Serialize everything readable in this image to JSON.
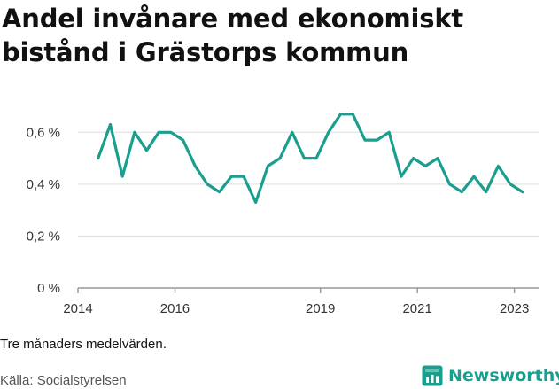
{
  "title": "Andel invånare med ekonomiskt bistånd i Grästorps kommun",
  "note": "Tre månaders medelvärden.",
  "source": "Källa: Socialstyrelsen",
  "brand": {
    "name": "Newsworthy",
    "icon": "newsworthy-logo-icon",
    "color": "#1a9e8e"
  },
  "chart_data": {
    "type": "line",
    "title": "Andel invånare med ekonomiskt bistånd i Grästorps kommun",
    "xlabel": "",
    "ylabel": "",
    "x_ticks": [
      "2014",
      "2016",
      "2019",
      "2021",
      "2023"
    ],
    "y_ticks": [
      "0 %",
      "0,2 %",
      "0,4 %",
      "0,6 %"
    ],
    "ylim": [
      0,
      0.7
    ],
    "grid": "horizontal",
    "line_color": "#1a9e8e",
    "series": [
      {
        "x": [
          "2014-06",
          "2014-09",
          "2014-12",
          "2015-03",
          "2015-06",
          "2015-09",
          "2015-12",
          "2016-03",
          "2016-06",
          "2016-09",
          "2016-12",
          "2017-03",
          "2017-06",
          "2017-09",
          "2017-12",
          "2018-03",
          "2018-06",
          "2018-09",
          "2018-12",
          "2019-03",
          "2019-06",
          "2019-09",
          "2019-12",
          "2020-03",
          "2020-06",
          "2020-09",
          "2020-12",
          "2021-03",
          "2021-06",
          "2021-09",
          "2021-12",
          "2022-03",
          "2022-06",
          "2022-09",
          "2022-12",
          "2023-03"
        ],
        "values": [
          0.5,
          0.63,
          0.43,
          0.6,
          0.53,
          0.6,
          0.6,
          0.57,
          0.47,
          0.4,
          0.37,
          0.43,
          0.43,
          0.33,
          0.47,
          0.5,
          0.6,
          0.5,
          0.5,
          0.6,
          0.67,
          0.67,
          0.57,
          0.57,
          0.6,
          0.43,
          0.5,
          0.47,
          0.5,
          0.4,
          0.37,
          0.43,
          0.37,
          0.47,
          0.4,
          0.37
        ]
      }
    ]
  }
}
